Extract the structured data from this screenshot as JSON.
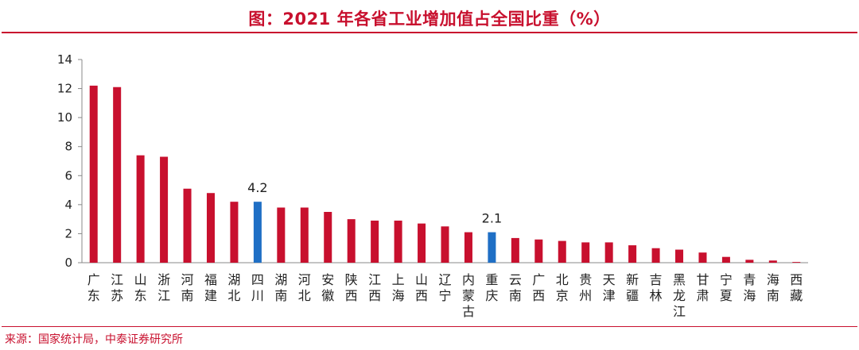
{
  "header": {
    "title": "图：2021 年各省工业增加值占全国比重（%）"
  },
  "footer": {
    "source": "来源：国家统计局，中泰证券研究所"
  },
  "colors": {
    "accent": "#c8102e",
    "bar_default": "#c8102e",
    "bar_highlight": "#1f6fc5"
  },
  "chart_data": {
    "type": "bar",
    "title": "2021 年各省工业增加值占全国比重（%）",
    "xlabel": "",
    "ylabel": "",
    "ylim": [
      0,
      14
    ],
    "yticks": [
      0,
      2,
      4,
      6,
      8,
      10,
      12,
      14
    ],
    "grid": false,
    "categories": [
      "广东",
      "江苏",
      "山东",
      "浙江",
      "河南",
      "福建",
      "湖北",
      "四川",
      "湖南",
      "河北",
      "安徽",
      "陕西",
      "江西",
      "上海",
      "山西",
      "辽宁",
      "内蒙古",
      "重庆",
      "云南",
      "广西",
      "北京",
      "贵州",
      "天津",
      "新疆",
      "吉林",
      "黑龙江",
      "甘肃",
      "宁夏",
      "青海",
      "海南",
      "西藏"
    ],
    "values": [
      12.2,
      12.1,
      7.4,
      7.3,
      5.1,
      4.8,
      4.2,
      4.2,
      3.8,
      3.8,
      3.5,
      3.0,
      2.9,
      2.9,
      2.7,
      2.5,
      2.1,
      2.1,
      1.7,
      1.6,
      1.5,
      1.4,
      1.4,
      1.2,
      1.0,
      0.9,
      0.7,
      0.4,
      0.2,
      0.15,
      0.05
    ],
    "highlighted": [
      "四川",
      "重庆"
    ],
    "data_labels": [
      {
        "category": "四川",
        "text": "4.2"
      },
      {
        "category": "重庆",
        "text": "2.1"
      }
    ]
  }
}
